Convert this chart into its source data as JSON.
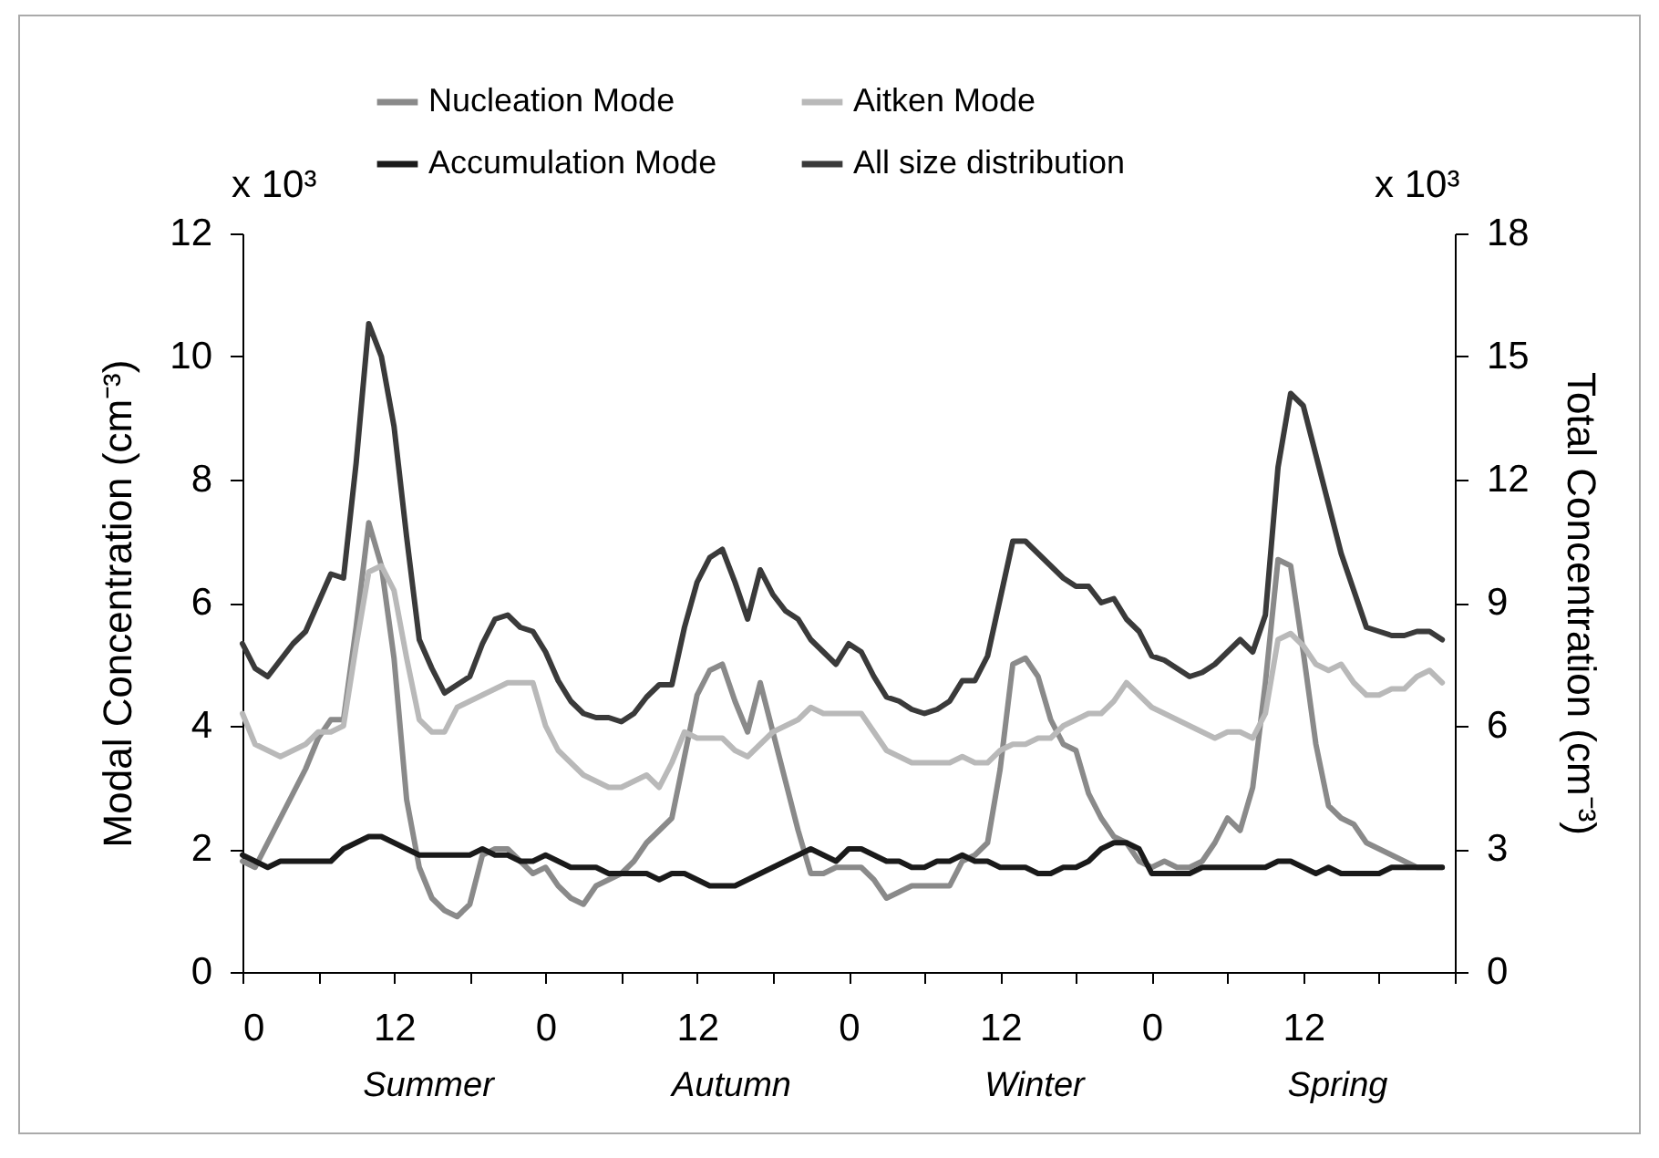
{
  "chart_data": {
    "type": "line",
    "xlabel": null,
    "ylabel": "Modal Concentration (cm⁻³)",
    "y2label": "Total Concentration (cm⁻³)",
    "annotations": [
      "x 10³",
      "x 10³",
      "Summer",
      "Autumn",
      "Winter",
      "Spring"
    ],
    "categories": [
      "0",
      null,
      null,
      null,
      null,
      null,
      null,
      null,
      null,
      null,
      null,
      null,
      "12",
      null,
      null,
      null,
      null,
      null,
      null,
      null,
      null,
      null,
      null,
      null,
      "0",
      null,
      null,
      null,
      null,
      null,
      null,
      null,
      null,
      null,
      null,
      null,
      "12",
      null,
      null,
      null,
      null,
      null,
      null,
      null,
      null,
      null,
      null,
      null,
      "0",
      null,
      null,
      null,
      null,
      null,
      null,
      null,
      null,
      null,
      null,
      null,
      "12",
      null,
      null,
      null,
      null,
      null,
      null,
      null,
      null,
      null,
      null,
      null,
      "0",
      null,
      null,
      null,
      null,
      null,
      null,
      null,
      null,
      null,
      null,
      null,
      "12",
      null,
      null,
      null,
      null,
      null,
      null,
      null,
      null,
      null,
      null,
      null
    ],
    "ylim": [
      0,
      12
    ],
    "yticks": [
      0,
      2,
      4,
      6,
      8,
      10,
      12
    ],
    "y2lim": [
      0,
      18
    ],
    "y2ticks": [
      0,
      3,
      6,
      9,
      12,
      15,
      18
    ],
    "legend": "top",
    "grid": false,
    "line_style": "solid",
    "series": [
      {
        "name": "Nucleation Mode",
        "color": "#8a8a8a",
        "values": [
          1.8,
          1.7,
          2.1,
          2.5,
          2.9,
          3.3,
          3.8,
          4.1,
          4.1,
          5.6,
          7.3,
          6.6,
          5.1,
          2.8,
          1.7,
          1.2,
          1.0,
          0.9,
          1.1,
          1.9,
          2.0,
          2.0,
          1.8,
          1.6,
          1.7,
          1.4,
          1.2,
          1.1,
          1.4,
          1.5,
          1.6,
          1.8,
          2.1,
          2.3,
          2.5,
          3.5,
          4.5,
          4.9,
          5.0,
          4.4,
          3.9,
          4.7,
          3.9,
          3.1,
          2.3,
          1.6,
          1.6,
          1.7,
          1.7,
          1.7,
          1.5,
          1.2,
          1.3,
          1.4,
          1.4,
          1.4,
          1.4,
          1.8,
          1.9,
          2.1,
          3.3,
          5.0,
          5.1,
          4.8,
          4.1,
          3.7,
          3.6,
          2.9,
          2.5,
          2.2,
          2.1,
          1.8,
          1.7,
          1.8,
          1.7,
          1.7,
          1.8,
          2.1,
          2.5,
          2.3,
          3.0,
          4.7,
          6.7,
          6.6,
          5.2,
          3.7,
          2.7,
          2.5,
          2.4,
          2.1,
          2.0,
          1.9,
          1.8,
          1.7,
          1.7,
          1.7
        ]
      },
      {
        "name": "Aitken Mode",
        "color": "#b9b9b9",
        "values": [
          4.2,
          3.7,
          3.6,
          3.5,
          3.6,
          3.7,
          3.9,
          3.9,
          4.0,
          5.3,
          6.5,
          6.6,
          6.2,
          5.1,
          4.1,
          3.9,
          3.9,
          4.3,
          4.4,
          4.5,
          4.6,
          4.7,
          4.7,
          4.7,
          4.0,
          3.6,
          3.4,
          3.2,
          3.1,
          3.0,
          3.0,
          3.1,
          3.2,
          3.0,
          3.4,
          3.9,
          3.8,
          3.8,
          3.8,
          3.6,
          3.5,
          3.7,
          3.9,
          4.0,
          4.1,
          4.3,
          4.2,
          4.2,
          4.2,
          4.2,
          3.9,
          3.6,
          3.5,
          3.4,
          3.4,
          3.4,
          3.4,
          3.5,
          3.4,
          3.4,
          3.6,
          3.7,
          3.7,
          3.8,
          3.8,
          4.0,
          4.1,
          4.2,
          4.2,
          4.4,
          4.7,
          4.5,
          4.3,
          4.2,
          4.1,
          4.0,
          3.9,
          3.8,
          3.9,
          3.9,
          3.8,
          4.2,
          5.4,
          5.5,
          5.3,
          5.0,
          4.9,
          5.0,
          4.7,
          4.5,
          4.5,
          4.6,
          4.6,
          4.8,
          4.9,
          4.7
        ]
      },
      {
        "name": "Accumulation Mode",
        "color": "#1a1a1a",
        "values": [
          1.9,
          1.8,
          1.7,
          1.8,
          1.8,
          1.8,
          1.8,
          1.8,
          2.0,
          2.1,
          2.2,
          2.2,
          2.1,
          2.0,
          1.9,
          1.9,
          1.9,
          1.9,
          1.9,
          2.0,
          1.9,
          1.9,
          1.8,
          1.8,
          1.9,
          1.8,
          1.7,
          1.7,
          1.7,
          1.6,
          1.6,
          1.6,
          1.6,
          1.5,
          1.6,
          1.6,
          1.5,
          1.4,
          1.4,
          1.4,
          1.5,
          1.6,
          1.7,
          1.8,
          1.9,
          2.0,
          1.9,
          1.8,
          2.0,
          2.0,
          1.9,
          1.8,
          1.8,
          1.7,
          1.7,
          1.8,
          1.8,
          1.9,
          1.8,
          1.8,
          1.7,
          1.7,
          1.7,
          1.6,
          1.6,
          1.7,
          1.7,
          1.8,
          2.0,
          2.1,
          2.1,
          2.0,
          1.6,
          1.6,
          1.6,
          1.6,
          1.7,
          1.7,
          1.7,
          1.7,
          1.7,
          1.7,
          1.8,
          1.8,
          1.7,
          1.6,
          1.7,
          1.6,
          1.6,
          1.6,
          1.6,
          1.7,
          1.7,
          1.7,
          1.7,
          1.7
        ]
      },
      {
        "name": "All size distribution",
        "color": "#3a3a3a",
        "axis": "y2",
        "values": [
          8.0,
          7.4,
          7.2,
          7.6,
          8.0,
          8.3,
          9.0,
          9.7,
          9.6,
          12.4,
          15.8,
          15.0,
          13.3,
          10.6,
          8.1,
          7.4,
          6.8,
          7.0,
          7.2,
          8.0,
          8.6,
          8.7,
          8.4,
          8.3,
          7.8,
          7.1,
          6.6,
          6.3,
          6.2,
          6.2,
          6.1,
          6.3,
          6.7,
          7.0,
          7.0,
          8.4,
          9.5,
          10.1,
          10.3,
          9.5,
          8.6,
          9.8,
          9.2,
          8.8,
          8.6,
          8.1,
          7.8,
          7.5,
          8.0,
          7.8,
          7.2,
          6.7,
          6.6,
          6.4,
          6.3,
          6.4,
          6.6,
          7.1,
          7.1,
          7.7,
          9.1,
          10.5,
          10.5,
          10.2,
          9.9,
          9.6,
          9.4,
          9.4,
          9.0,
          9.1,
          8.6,
          8.3,
          7.7,
          7.6,
          7.4,
          7.2,
          7.3,
          7.5,
          7.8,
          8.1,
          7.8,
          8.7,
          12.3,
          14.1,
          13.8,
          12.6,
          11.4,
          10.2,
          9.3,
          8.4,
          8.3,
          8.2,
          8.2,
          8.3,
          8.3,
          8.1
        ]
      }
    ]
  }
}
